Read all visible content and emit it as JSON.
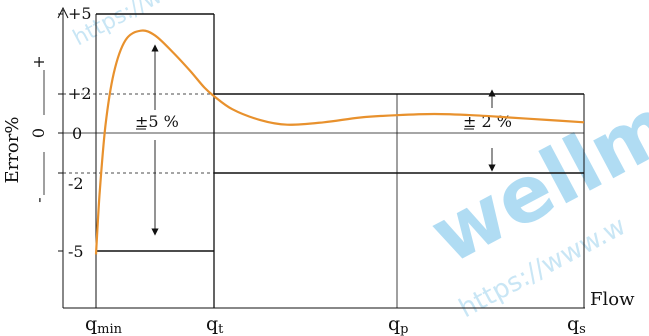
{
  "chart_data": {
    "type": "line",
    "xlabel": "Flow",
    "ylabel": "Error%",
    "x_categories": [
      "q_min",
      "q_t",
      "q_p",
      "q_s"
    ],
    "x_tick_labels": [
      {
        "base": "q",
        "sub": "min"
      },
      {
        "base": "q",
        "sub": "t"
      },
      {
        "base": "q",
        "sub": "p"
      },
      {
        "base": "q",
        "sub": "s"
      }
    ],
    "y_ticks": [
      {
        "value": 5,
        "label": "+5"
      },
      {
        "value": 2,
        "label": "+2"
      },
      {
        "value": 0,
        "label": "0"
      },
      {
        "value": -2,
        "label": "-2"
      },
      {
        "value": -5,
        "label": "-5"
      }
    ],
    "y_axis_side_signs": {
      "plus": "+",
      "zero": "0",
      "minus": "-"
    },
    "ylim": [
      -5,
      5
    ],
    "lower_zone": {
      "x_range": [
        "q_min",
        "q_t"
      ],
      "limits": [
        -5,
        5
      ],
      "label": "±5 %"
    },
    "upper_zone": {
      "x_range": [
        "q_t",
        "q_s"
      ],
      "limits": [
        -2,
        2
      ],
      "label": "± 2 %"
    },
    "error_curve": {
      "color": "#e8912d",
      "x": [
        0.0,
        0.03,
        0.08,
        0.15,
        0.25,
        0.38,
        0.5,
        0.65,
        0.8,
        0.92,
        1.0,
        1.1,
        1.25,
        1.4,
        1.6,
        1.8,
        2.0,
        2.2,
        2.4,
        2.6,
        2.8,
        3.0
      ],
      "y": [
        -5.1,
        -2.6,
        0.3,
        2.5,
        3.9,
        4.3,
        4.1,
        3.4,
        2.6,
        1.9,
        1.55,
        1.0,
        0.55,
        0.35,
        0.45,
        0.65,
        0.75,
        0.8,
        0.75,
        0.65,
        0.55,
        0.45
      ]
    },
    "grid": false,
    "watermark": "wellm",
    "watermark_url": "https://www.w",
    "watermark_url_short": "https://w"
  }
}
